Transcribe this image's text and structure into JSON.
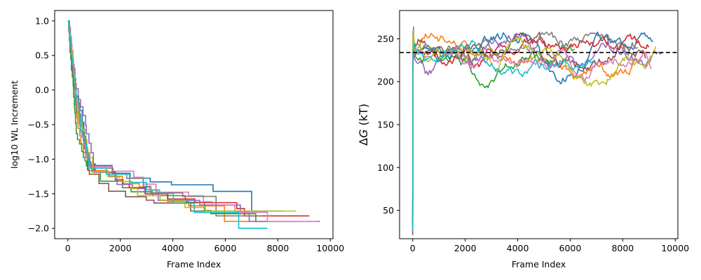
{
  "chart_data": [
    {
      "type": "line",
      "title": "",
      "xlabel": "Frame Index",
      "ylabel": "log10 WL Increment",
      "xlim": [
        -500,
        10100
      ],
      "ylim": [
        -2.15,
        1.15
      ],
      "xticks": [
        0,
        2000,
        4000,
        6000,
        8000,
        10000
      ],
      "xtick_labels": [
        "0",
        "2000",
        "4000",
        "6000",
        "8000",
        "10000"
      ],
      "yticks": [
        1.0,
        0.5,
        0.0,
        -0.5,
        -1.0,
        -1.5,
        -2.0
      ],
      "ytick_labels": [
        "1.0",
        "0.5",
        "0.0",
        "−0.5",
        "−1.0",
        "−1.5",
        "−2.0"
      ],
      "grid": false,
      "legend": "none",
      "series": [
        {
          "color": "#1f77b4",
          "end": 8200,
          "plateau": -1.75,
          "seed": 1
        },
        {
          "color": "#ff7f0e",
          "end": 7500,
          "plateau": -1.9,
          "seed": 2
        },
        {
          "color": "#2ca02c",
          "end": 8800,
          "plateau": -1.9,
          "seed": 3
        },
        {
          "color": "#d62728",
          "end": 9200,
          "plateau": -1.82,
          "seed": 4
        },
        {
          "color": "#9467bd",
          "end": 9600,
          "plateau": -1.9,
          "seed": 5
        },
        {
          "color": "#8c564b",
          "end": 6600,
          "plateau": -1.75,
          "seed": 6
        },
        {
          "color": "#e377c2",
          "end": 9500,
          "plateau": -1.9,
          "seed": 7
        },
        {
          "color": "#7f7f7f",
          "end": 7400,
          "plateau": -1.82,
          "seed": 8
        },
        {
          "color": "#bcbd22",
          "end": 8700,
          "plateau": -1.75,
          "seed": 9
        },
        {
          "color": "#17becf",
          "end": 7600,
          "plateau": -2.0,
          "seed": 10
        }
      ]
    },
    {
      "type": "line",
      "title": "",
      "xlabel": "Frame Index",
      "ylabel_prefix": "Δ",
      "ylabel_var": "G",
      "ylabel_suffix": " (kT)",
      "xlim": [
        -500,
        10100
      ],
      "ylim": [
        17,
        283
      ],
      "xticks": [
        0,
        2000,
        4000,
        6000,
        8000,
        10000
      ],
      "xtick_labels": [
        "0",
        "2000",
        "4000",
        "6000",
        "8000",
        "10000"
      ],
      "yticks": [
        50,
        100,
        150,
        200,
        250
      ],
      "ytick_labels": [
        "50",
        "100",
        "150",
        "200",
        "250"
      ],
      "reference_line": 234,
      "grid": false,
      "legend": "none",
      "series": [
        {
          "color": "#1f77b4",
          "end": 9200,
          "seed": 11
        },
        {
          "color": "#ff7f0e",
          "end": 8800,
          "seed": 12
        },
        {
          "color": "#2ca02c",
          "end": 6200,
          "seed": 13
        },
        {
          "color": "#d62728",
          "end": 9000,
          "seed": 14
        },
        {
          "color": "#9467bd",
          "end": 9500,
          "seed": 15
        },
        {
          "color": "#8c564b",
          "end": 8900,
          "seed": 16
        },
        {
          "color": "#e377c2",
          "end": 9100,
          "seed": 17
        },
        {
          "color": "#7f7f7f",
          "end": 8600,
          "seed": 18
        },
        {
          "color": "#bcbd22",
          "end": 9300,
          "seed": 19
        },
        {
          "color": "#17becf",
          "end": 7000,
          "seed": 20
        }
      ]
    }
  ]
}
